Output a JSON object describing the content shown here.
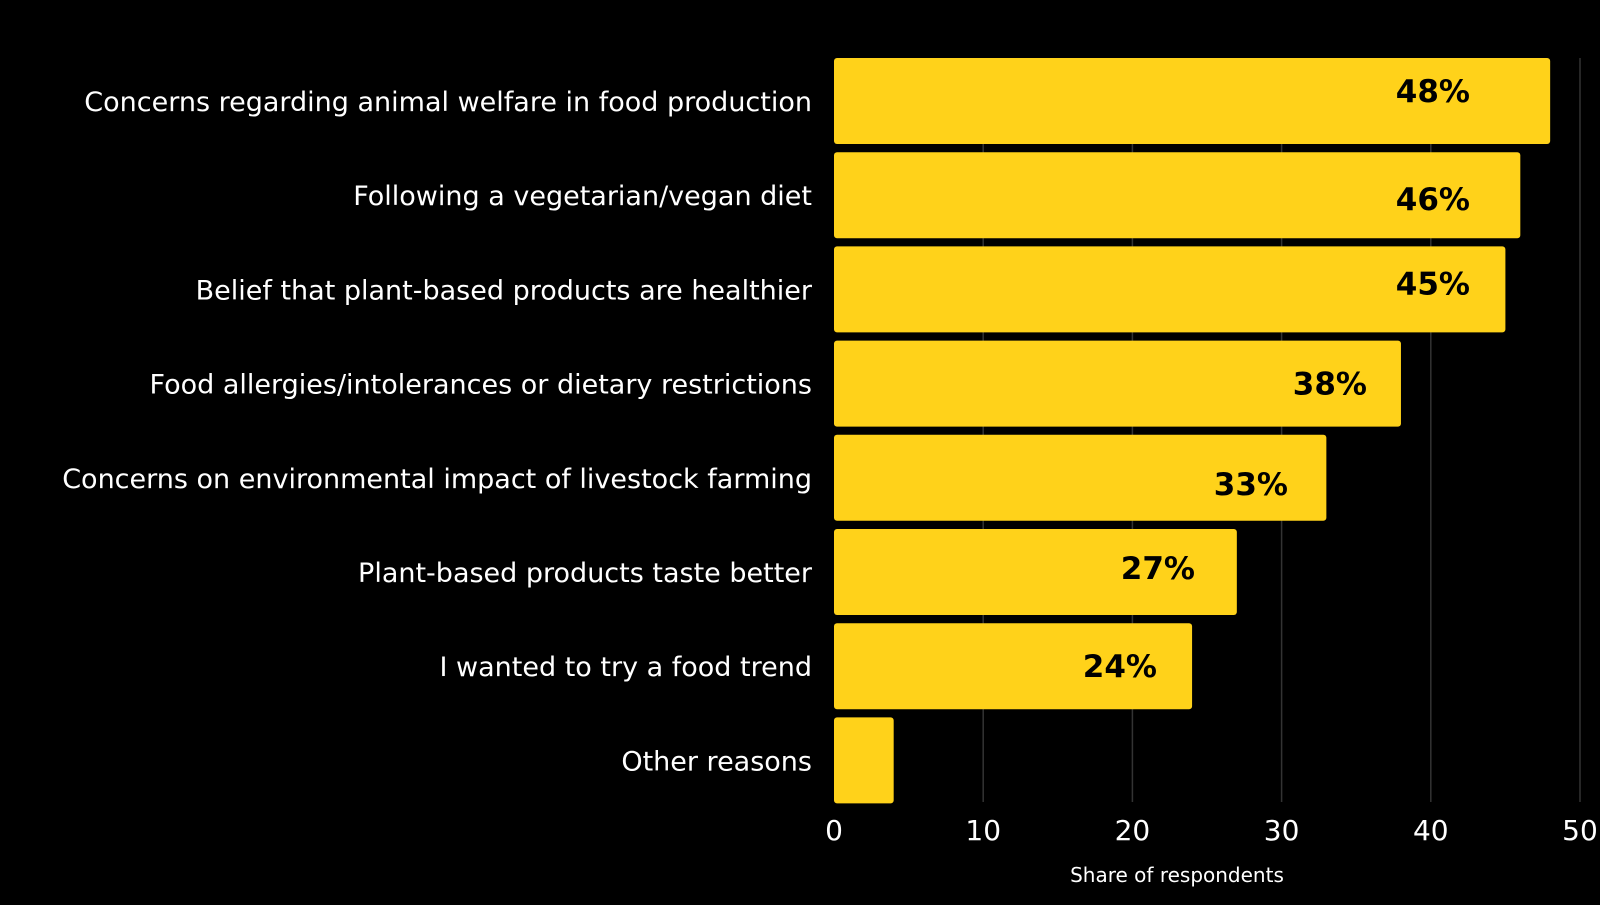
{
  "chart_data": {
    "type": "bar",
    "orientation": "horizontal",
    "categories": [
      "Concerns regarding animal welfare in food production",
      "Following a vegetarian/vegan diet",
      "Belief that plant-based products are healthier",
      "Food allergies/intolerances or dietary restrictions",
      "Concerns on environmental impact of livestock farming",
      "Plant-based products taste better",
      "I wanted to try a food trend",
      "Other reasons"
    ],
    "values": [
      48,
      46,
      45,
      38,
      33,
      27,
      24,
      4
    ],
    "value_labels": [
      "48%",
      "46%",
      "45%",
      "38%",
      "33%",
      "27%",
      "24%",
      ""
    ],
    "title": "",
    "xlabel": "Share of respondents",
    "ylabel": "",
    "xlim": [
      0,
      50
    ],
    "xticks": [
      "0",
      "10",
      "20",
      "30",
      "40",
      "50"
    ],
    "grid": "vertical",
    "legend": "none"
  },
  "colors": {
    "background": "#000000",
    "bar": "#ffd21a",
    "gridline": "#333333",
    "text": "#ffffff",
    "value_text": "#000000"
  }
}
